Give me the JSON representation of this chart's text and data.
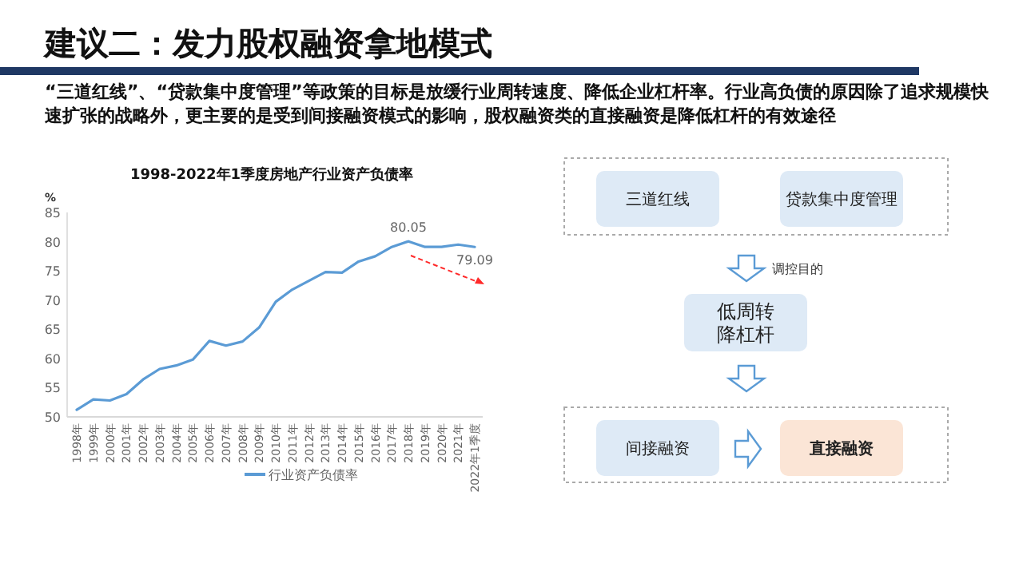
{
  "chart_data": [
    {
      "type": "other",
      "title": "建议二：发力股权融资拿地模式",
      "annotations": [
        "“三道红线”、“贷款集中度管理”等政策的目标是放缓行业周转速度、降低企业杠杆率。行业高负债的原因除了追求规模快速扩张的战略外，更主要的是受到间接融资模式的影响，股权融资类的直接融资是降低杠杆的有效途径"
      ]
    },
    {
      "type": "line",
      "title": "1998-2022年1季度房地产行业资产负债率",
      "ylabel": "%",
      "categories": [
        "1998年",
        "1999年",
        "2000年",
        "2001年",
        "2002年",
        "2003年",
        "2004年",
        "2005年",
        "2006年",
        "2007年",
        "2008年",
        "2009年",
        "2010年",
        "2011年",
        "2012年",
        "2013年",
        "2014年",
        "2015年",
        "2016年",
        "2017年",
        "2018年",
        "2019年",
        "2020年",
        "2021年",
        "2022年1季度"
      ],
      "series": [
        {
          "name": "行业资产负债率",
          "color": "#5b9bd5",
          "values": [
            51.2,
            53.0,
            52.8,
            53.9,
            56.4,
            58.2,
            58.8,
            59.8,
            63.0,
            62.2,
            62.9,
            65.3,
            69.7,
            71.8,
            73.3,
            74.8,
            74.7,
            76.6,
            77.5,
            79.1,
            80.05,
            79.1,
            79.1,
            79.5,
            79.09
          ],
          "value_labels": [
            null,
            null,
            null,
            null,
            null,
            null,
            null,
            null,
            null,
            null,
            null,
            null,
            null,
            null,
            null,
            null,
            null,
            null,
            null,
            null,
            "80.05",
            null,
            null,
            null,
            "79.09"
          ]
        }
      ],
      "ylim": [
        50,
        85
      ],
      "yticks": [
        50,
        55,
        60,
        65,
        70,
        75,
        80,
        85
      ],
      "grid": false,
      "legend": "bottom",
      "marker": "none",
      "line_style": "solid"
    },
    {
      "type": "other",
      "annotations": [
        "三道红线",
        "贷款集中度管理",
        "调控目的",
        "低周转",
        "降杠杆",
        "间接融资",
        "直接融资"
      ]
    }
  ]
}
